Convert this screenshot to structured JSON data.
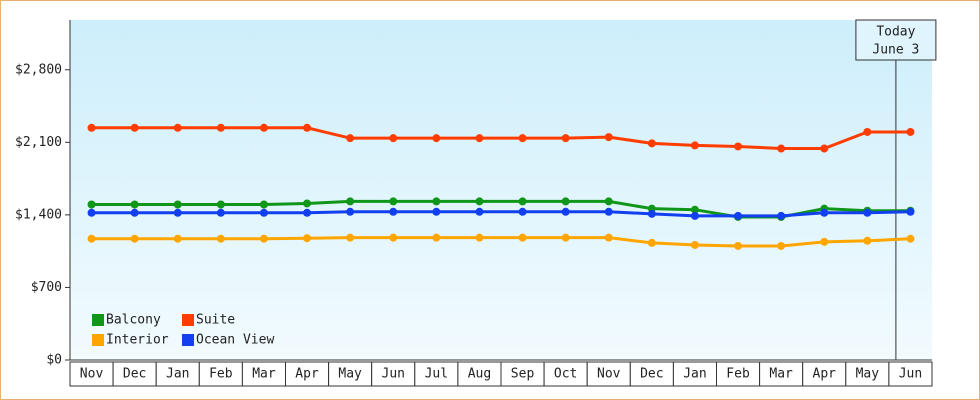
{
  "chart_data": {
    "type": "line",
    "categories": [
      "Nov",
      "Dec",
      "Jan",
      "Feb",
      "Mar",
      "Apr",
      "May",
      "Jun",
      "Jul",
      "Aug",
      "Sep",
      "Oct",
      "Nov",
      "Dec",
      "Jan",
      "Feb",
      "Mar",
      "Apr",
      "May",
      "Jun"
    ],
    "series": [
      {
        "name": "Balcony",
        "color": "#109618",
        "values": [
          1500,
          1500,
          1500,
          1500,
          1500,
          1510,
          1530,
          1530,
          1530,
          1530,
          1530,
          1530,
          1530,
          1460,
          1450,
          1380,
          1380,
          1460,
          1440,
          1440
        ]
      },
      {
        "name": "Suite",
        "color": "#ff3d00",
        "values": [
          2240,
          2240,
          2240,
          2240,
          2240,
          2240,
          2140,
          2140,
          2140,
          2140,
          2140,
          2140,
          2150,
          2090,
          2070,
          2060,
          2040,
          2040,
          2200,
          2200
        ]
      },
      {
        "name": "Interior",
        "color": "#ffa500",
        "values": [
          1170,
          1170,
          1170,
          1170,
          1170,
          1175,
          1180,
          1180,
          1180,
          1180,
          1180,
          1180,
          1180,
          1130,
          1110,
          1100,
          1100,
          1140,
          1150,
          1170
        ]
      },
      {
        "name": "Ocean View",
        "color": "#1240f0",
        "values": [
          1420,
          1420,
          1420,
          1420,
          1420,
          1420,
          1430,
          1430,
          1430,
          1430,
          1430,
          1430,
          1430,
          1410,
          1390,
          1390,
          1390,
          1420,
          1420,
          1430
        ]
      }
    ],
    "ylim": [
      0,
      3280
    ],
    "yticks": [
      {
        "value": 0,
        "label": "$0"
      },
      {
        "value": 700,
        "label": "$700"
      },
      {
        "value": 1400,
        "label": "$1,400"
      },
      {
        "value": 2100,
        "label": "$2,100"
      },
      {
        "value": 2800,
        "label": "$2,800"
      }
    ],
    "annotation": [
      "Today",
      "June 3"
    ],
    "legend": "bottom-left"
  }
}
